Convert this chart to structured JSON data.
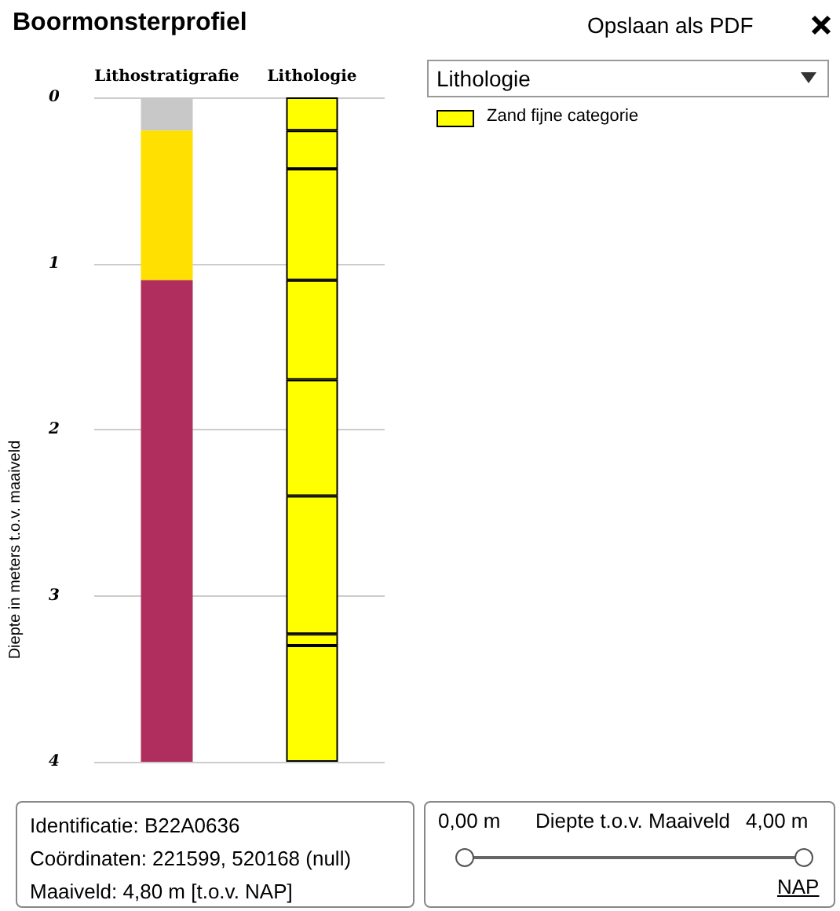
{
  "chart_data": {
    "type": "bar",
    "title": "Boormonsterprofiel",
    "ylabel": "Diepte in meters t.o.v. maaiveld",
    "legend_title": "Lithologie",
    "categories": [
      "Lithostratigrafie",
      "Lithologie"
    ],
    "stacked": true,
    "ylim": [
      4,
      0
    ],
    "yticks": [
      0,
      1,
      2,
      3,
      4
    ],
    "grid": "y",
    "series": [
      {
        "values": [
          0.2,
          0.2
        ],
        "colors": [
          "#c8c8c8",
          "#ffff00"
        ]
      },
      {
        "values": [
          0.9,
          0.23
        ],
        "colors": [
          "#ffe000",
          "#ffff00"
        ]
      },
      {
        "values": [
          2.9,
          0.67
        ],
        "colors": [
          "#b02e5e",
          "#ffff00"
        ]
      },
      {
        "values": [
          null,
          0.6
        ],
        "colors": [
          null,
          "#ffff00"
        ]
      },
      {
        "values": [
          null,
          0.7
        ],
        "colors": [
          null,
          "#ffff00"
        ]
      },
      {
        "values": [
          null,
          0.83
        ],
        "colors": [
          null,
          "#ffff00"
        ]
      },
      {
        "values": [
          null,
          0.07
        ],
        "colors": [
          null,
          "#ffff00"
        ]
      },
      {
        "values": [
          null,
          0.7
        ],
        "colors": [
          null,
          "#ffff00"
        ]
      }
    ],
    "annotations": [
      "Opslaan als PDF",
      "Zand fijne categorie",
      "Identificatie: B22A0636",
      "Coördinaten: 221599, 520168 (null)",
      "Maaiveld: 4,80 m [t.o.v. NAP]",
      "0,00 m",
      "Diepte t.o.v. Maaiveld",
      "4,00 m",
      "NAP"
    ]
  }
}
